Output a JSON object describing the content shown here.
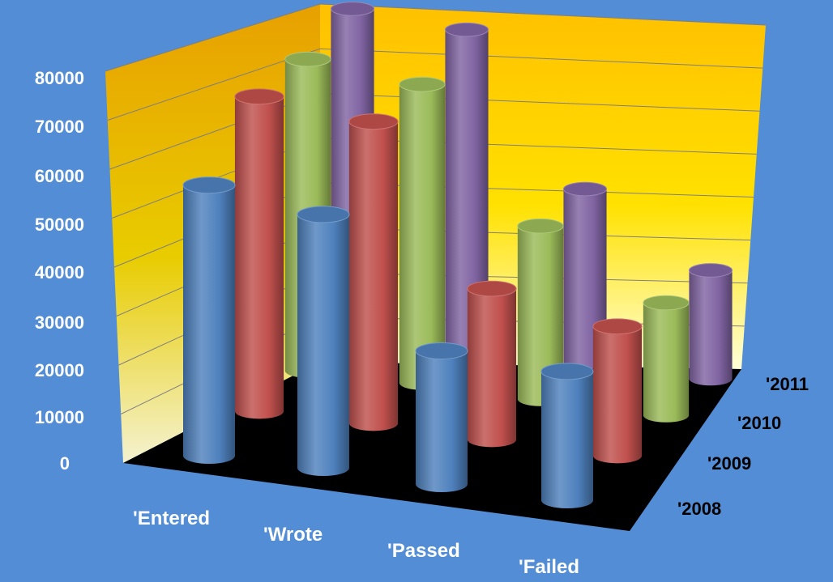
{
  "chart_data": {
    "type": "bar",
    "subtype": "3d-cylinder",
    "categories": [
      "'Entered",
      "'Wrote",
      "'Passed",
      "'Failed"
    ],
    "series": [
      {
        "name": "'2008",
        "color": "#4f81bd",
        "values": [
          63000,
          59000,
          31000,
          30000
        ]
      },
      {
        "name": "'2009",
        "color": "#c0504d",
        "values": [
          73000,
          70000,
          35000,
          30000
        ]
      },
      {
        "name": "'2010",
        "color": "#9bbb59",
        "values": [
          72000,
          69000,
          40000,
          26000
        ]
      },
      {
        "name": "'2011",
        "color": "#8064a2",
        "values": [
          75000,
          73000,
          40000,
          25000
        ]
      }
    ],
    "yticks": [
      "0",
      "10000",
      "20000",
      "30000",
      "40000",
      "50000",
      "60000",
      "70000",
      "80000"
    ],
    "ylim": [
      0,
      80000
    ],
    "grid": true,
    "colors": {
      "background": "#538dd5",
      "back_wall_top": "#ffc000",
      "back_wall_bottom": "#ffffcc",
      "floor": "#000000",
      "gridline": "#7f7f7f"
    }
  }
}
